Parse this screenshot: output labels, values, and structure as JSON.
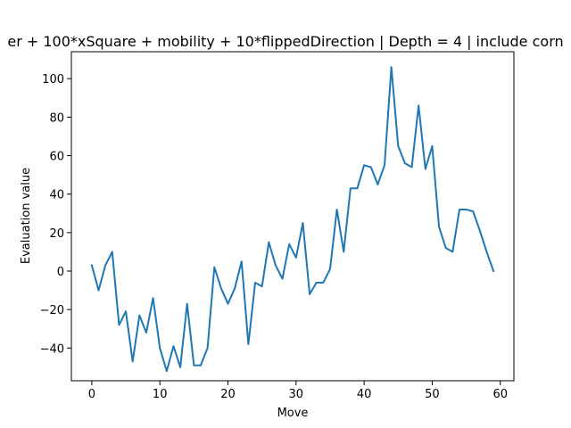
{
  "chart_data": {
    "type": "line",
    "title": "er + 100*xSquare + mobility + 10*flippedDirection | Depth = 4 | include corn",
    "xlabel": "Move",
    "ylabel": "Evaluation value",
    "xlim": [
      -3,
      62
    ],
    "ylim": [
      -57,
      114
    ],
    "xticks": [
      0,
      10,
      20,
      30,
      40,
      50,
      60
    ],
    "yticks": [
      -40,
      -20,
      0,
      20,
      40,
      60,
      80,
      100
    ],
    "grid": false,
    "series": [
      {
        "color": "#1f77b4",
        "x": [
          0,
          1,
          2,
          3,
          4,
          5,
          6,
          7,
          8,
          9,
          10,
          11,
          12,
          13,
          14,
          15,
          16,
          17,
          18,
          19,
          20,
          21,
          22,
          23,
          24,
          25,
          26,
          27,
          28,
          29,
          30,
          31,
          32,
          33,
          34,
          35,
          36,
          37,
          38,
          39,
          40,
          41,
          42,
          43,
          44,
          45,
          46,
          47,
          48,
          49,
          50,
          51,
          52,
          53,
          54,
          55,
          56,
          57,
          58,
          59
        ],
        "y": [
          3,
          -10,
          3,
          10,
          -28,
          -21,
          -47,
          -23,
          -32,
          -14,
          -40,
          -52,
          -39,
          -50,
          -17,
          -49,
          -49,
          -40,
          2,
          -9,
          -17,
          -9,
          5,
          -38,
          -6,
          -8,
          15,
          3,
          -4,
          14,
          7,
          25,
          -12,
          -6,
          -6,
          1,
          32,
          10,
          43,
          43,
          55,
          54,
          45,
          55,
          106,
          65,
          56,
          54,
          86,
          53,
          65,
          23,
          12,
          10,
          32,
          32,
          31,
          21,
          10,
          0
        ]
      }
    ]
  }
}
